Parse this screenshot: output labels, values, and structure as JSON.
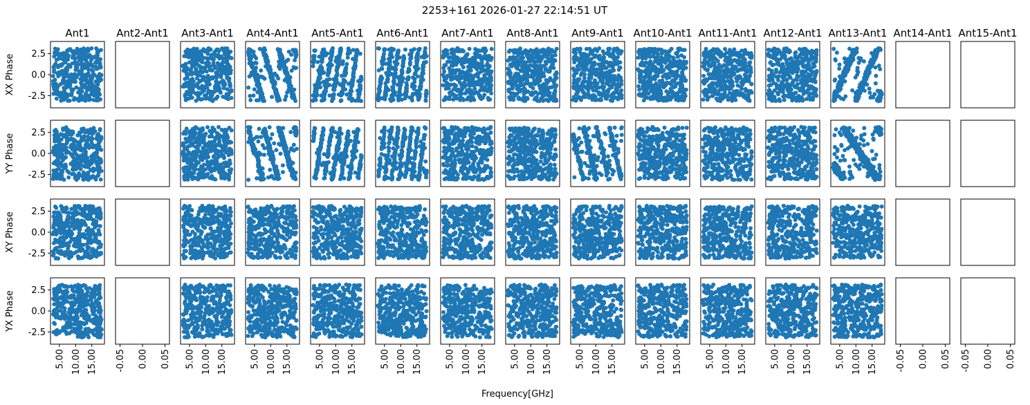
{
  "chart_data": {
    "type": "scatter",
    "title": "2253+161 2026-01-27 22:14:51 UT",
    "xlabel": "Frequency[GHz]",
    "marker_color": "#1f77b4",
    "grid": false,
    "columns": [
      "Ant1",
      "Ant2-Ant1",
      "Ant3-Ant1",
      "Ant4-Ant1",
      "Ant5-Ant1",
      "Ant6-Ant1",
      "Ant7-Ant1",
      "Ant8-Ant1",
      "Ant9-Ant1",
      "Ant10-Ant1",
      "Ant11-Ant1",
      "Ant12-Ant1",
      "Ant13-Ant1",
      "Ant14-Ant1",
      "Ant15-Ant1"
    ],
    "rows": [
      "XX Phase",
      "YY Phase",
      "XY Phase",
      "YX Phase"
    ],
    "data_xlim": [
      2.25,
      18.9
    ],
    "data_xticks": [
      "5.00",
      "10.00",
      "15.00"
    ],
    "data_xtick_values": [
      5,
      10,
      15
    ],
    "empty_xlim": [
      -0.06,
      0.06
    ],
    "empty_xticks": [
      "-0.05",
      "0.00",
      "0.05"
    ],
    "empty_xtick_values": [
      -0.05,
      0,
      0.05
    ],
    "ylim": [
      -3.95,
      3.95
    ],
    "yticks": [
      "2.5",
      "0.0",
      "-2.5"
    ],
    "ytick_values": [
      2.5,
      0,
      -2.5
    ],
    "phase_range": [
      -3.14,
      3.14
    ],
    "freq_range_ghz": [
      3,
      18
    ],
    "empty_columns": [
      "Ant2-Ant1",
      "Ant14-Ant1",
      "Ant15-Ant1"
    ],
    "phase_slopes_rad_per_ghz": {
      "XX Phase": {
        "Ant4-Ant1": -1.3,
        "Ant5-Ant1": 2.4,
        "Ant6-Ant1": 3.0,
        "Ant13-Ant1": 0.9
      },
      "YY Phase": {
        "Ant4-Ant1": -1.3,
        "Ant5-Ant1": 2.4,
        "Ant6-Ant1": 3.0,
        "Ant9-Ant1": -1.6,
        "Ant13-Ant1": -0.6
      }
    }
  }
}
